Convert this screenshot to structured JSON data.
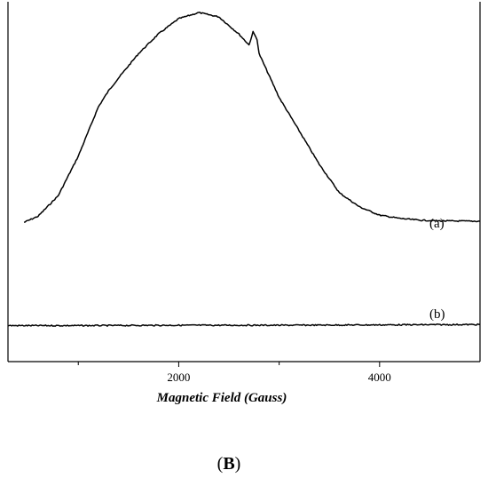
{
  "chart_data": {
    "type": "line",
    "title": "",
    "xlabel": "Magnetic Field (Gauss)",
    "ylabel": "",
    "xlim": [
      300,
      5000
    ],
    "ylim": [
      0,
      1
    ],
    "x_ticks": [
      2000,
      4000
    ],
    "x_minor_ticks": [
      1000,
      3000
    ],
    "grid": false,
    "panel_label": {
      "open": "(",
      "letter": "B",
      "close": ")"
    },
    "series": [
      {
        "label": "(a)",
        "points": [
          [
            460,
            0.387
          ],
          [
            600,
            0.404
          ],
          [
            800,
            0.461
          ],
          [
            1000,
            0.571
          ],
          [
            1200,
            0.708
          ],
          [
            1300,
            0.752
          ],
          [
            1400,
            0.788
          ],
          [
            1600,
            0.856
          ],
          [
            1800,
            0.911
          ],
          [
            2000,
            0.953
          ],
          [
            2200,
            0.97
          ],
          [
            2400,
            0.958
          ],
          [
            2600,
            0.91
          ],
          [
            2700,
            0.88
          ],
          [
            2740,
            0.916
          ],
          [
            2780,
            0.896
          ],
          [
            2800,
            0.856
          ],
          [
            3000,
            0.734
          ],
          [
            3200,
            0.641
          ],
          [
            3400,
            0.548
          ],
          [
            3600,
            0.469
          ],
          [
            3800,
            0.43
          ],
          [
            4000,
            0.407
          ],
          [
            4200,
            0.398
          ],
          [
            4400,
            0.393
          ],
          [
            4600,
            0.391
          ],
          [
            5000,
            0.39
          ]
        ]
      },
      {
        "label": "(b)",
        "points": [
          [
            300,
            0.1
          ],
          [
            1000,
            0.1
          ],
          [
            2000,
            0.101
          ],
          [
            3000,
            0.101
          ],
          [
            4000,
            0.102
          ],
          [
            5000,
            0.103
          ]
        ]
      }
    ]
  }
}
